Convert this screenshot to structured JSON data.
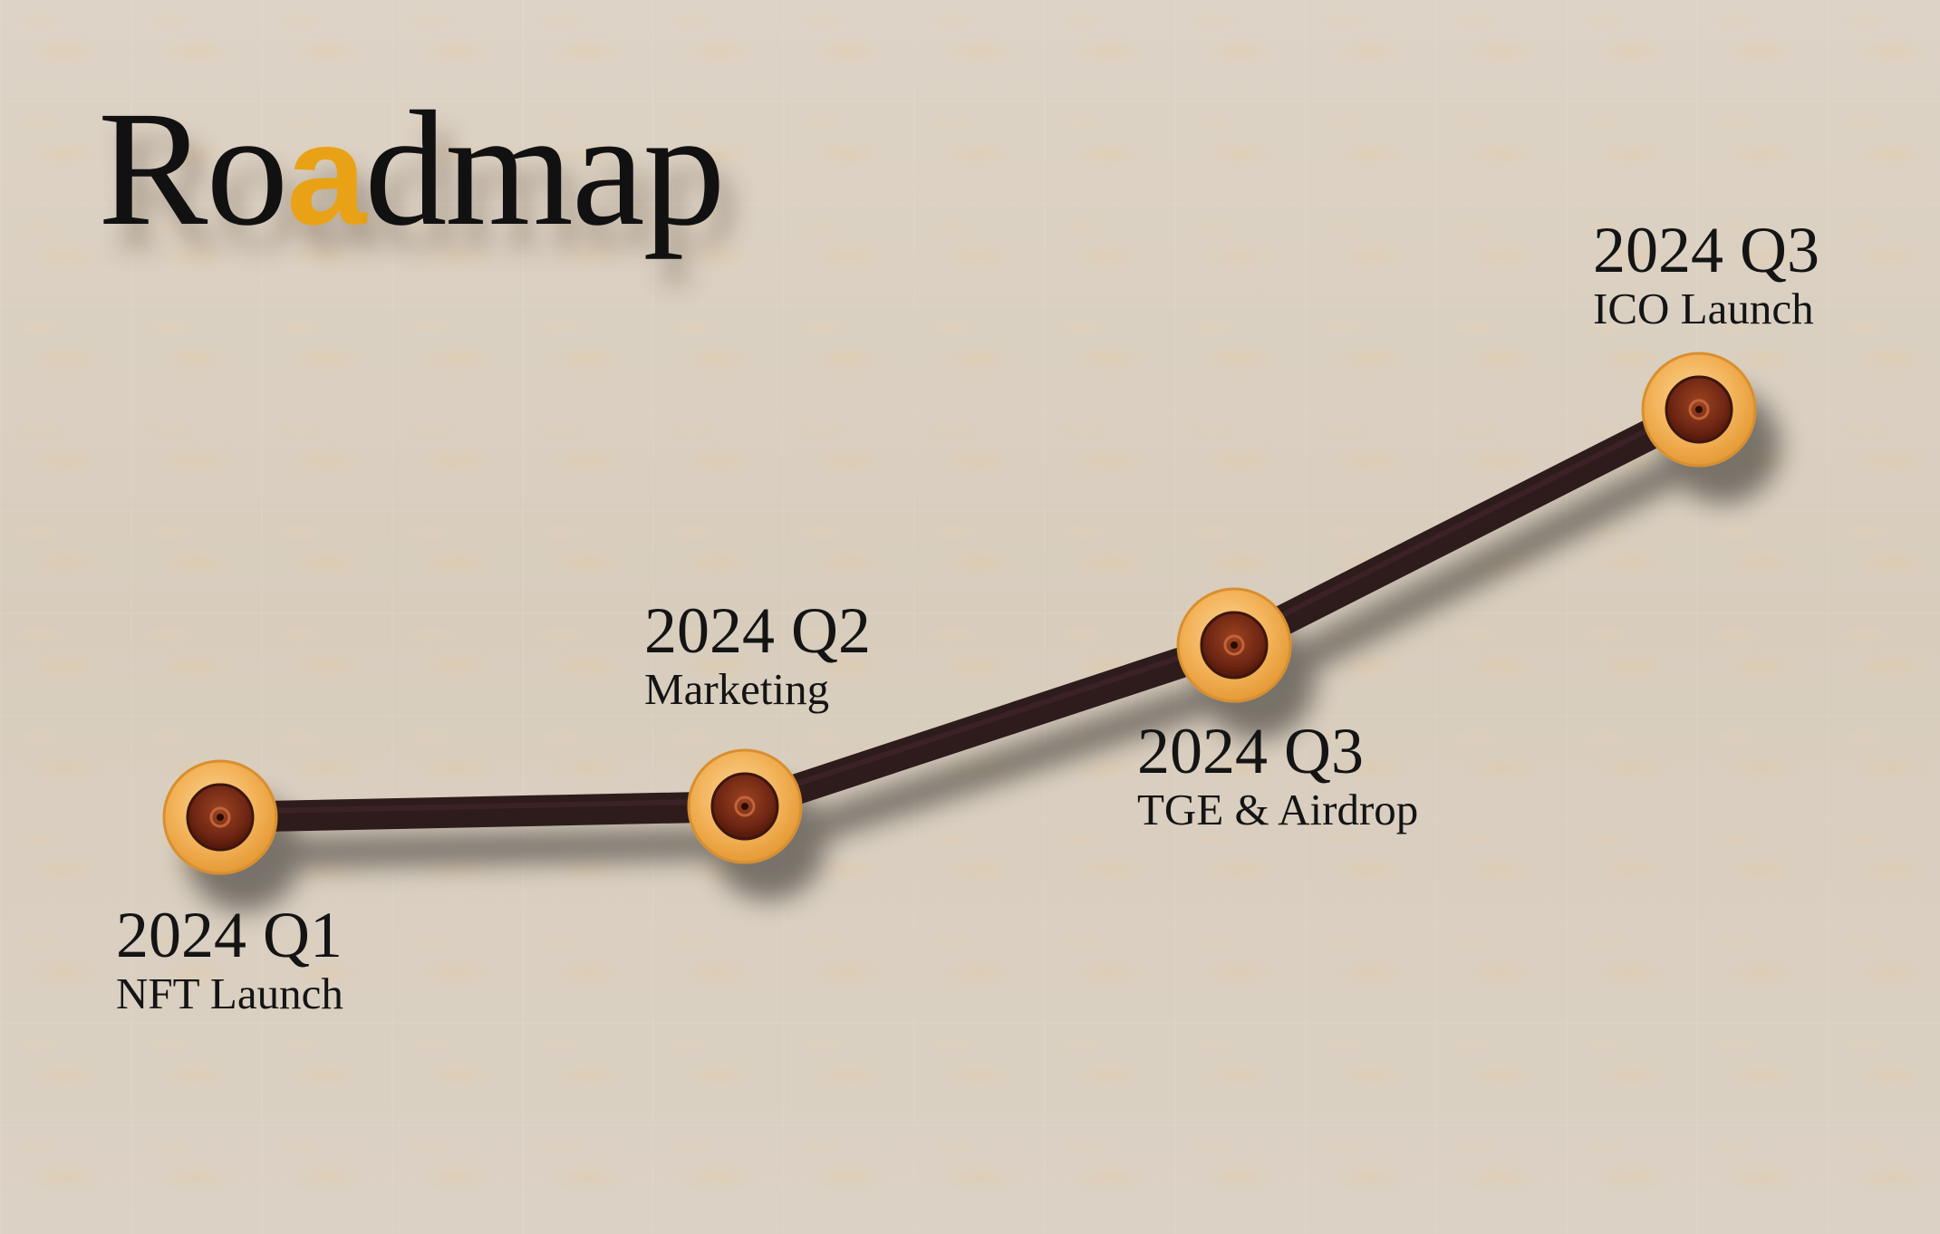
{
  "title": {
    "prefix": "Ro",
    "accent_letter": "a",
    "suffix": "dmap"
  },
  "milestones": [
    {
      "period": "2024 Q1",
      "label": "NFT Launch"
    },
    {
      "period": "2024 Q2",
      "label": "Marketing"
    },
    {
      "period": "2024 Q3",
      "label": "TGE & Airdrop"
    },
    {
      "period": "2024 Q3",
      "label": "ICO Launch"
    }
  ],
  "colors": {
    "accent": "#e9a216",
    "path": "#2e1a1c",
    "node_outer": "#f3b35a",
    "node_inner": "#7a2e16",
    "background": "#dcd1c3"
  },
  "icons": {
    "milestone_node": "button-marker-icon"
  }
}
